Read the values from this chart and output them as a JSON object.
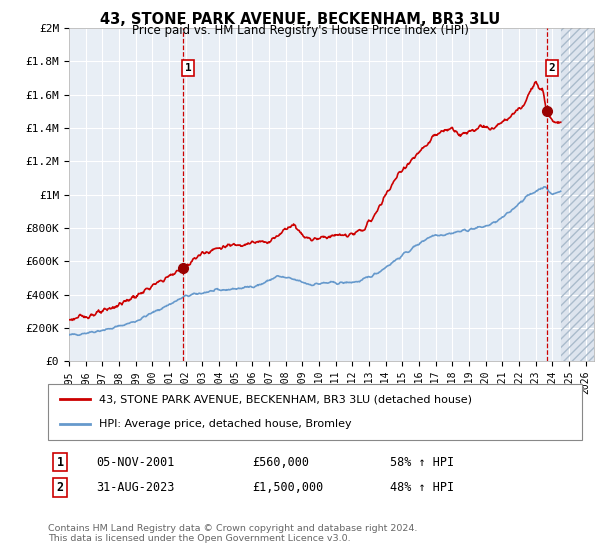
{
  "title": "43, STONE PARK AVENUE, BECKENHAM, BR3 3LU",
  "subtitle": "Price paid vs. HM Land Registry's House Price Index (HPI)",
  "ylim": [
    0,
    2000000
  ],
  "yticks": [
    0,
    200000,
    400000,
    600000,
    800000,
    1000000,
    1200000,
    1400000,
    1600000,
    1800000,
    2000000
  ],
  "ytick_labels": [
    "£0",
    "£200K",
    "£400K",
    "£600K",
    "£800K",
    "£1M",
    "£1.2M",
    "£1.4M",
    "£1.6M",
    "£1.8M",
    "£2M"
  ],
  "xtick_years": [
    1995,
    1996,
    1997,
    1998,
    1999,
    2000,
    2001,
    2002,
    2003,
    2004,
    2005,
    2006,
    2007,
    2008,
    2009,
    2010,
    2011,
    2012,
    2013,
    2014,
    2015,
    2016,
    2017,
    2018,
    2019,
    2020,
    2021,
    2022,
    2023,
    2024,
    2025,
    2026
  ],
  "red_line_color": "#cc0000",
  "blue_line_color": "#6699cc",
  "vline_color": "#cc0000",
  "sale1_x": 2001.85,
  "sale1_y": 560000,
  "sale1_label": "1",
  "sale2_x": 2023.67,
  "sale2_y": 1500000,
  "sale2_label": "2",
  "legend_line1": "43, STONE PARK AVENUE, BECKENHAM, BR3 3LU (detached house)",
  "legend_line2": "HPI: Average price, detached house, Bromley",
  "annotation1_num": "1",
  "annotation1_date": "05-NOV-2001",
  "annotation1_price": "£560,000",
  "annotation1_hpi": "58% ↑ HPI",
  "annotation2_num": "2",
  "annotation2_date": "31-AUG-2023",
  "annotation2_price": "£1,500,000",
  "annotation2_hpi": "48% ↑ HPI",
  "footer": "Contains HM Land Registry data © Crown copyright and database right 2024.\nThis data is licensed under the Open Government Licence v3.0.",
  "bg_color": "#ffffff",
  "plot_bg_color": "#e8eef5",
  "grid_color": "#ffffff",
  "xlim_start": 1995.0,
  "xlim_end": 2026.5,
  "hatch_start": 2024.5
}
